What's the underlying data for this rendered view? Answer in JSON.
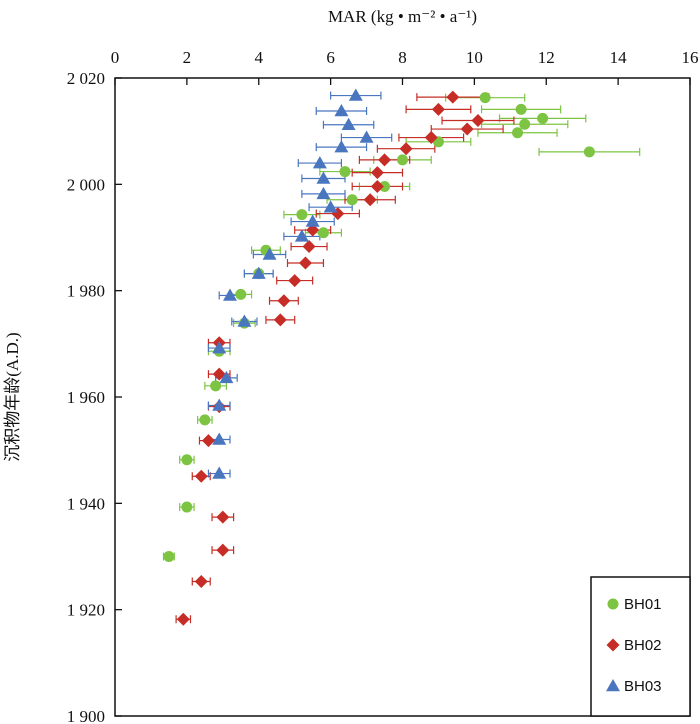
{
  "chart_data": {
    "type": "scatter",
    "title": "",
    "xlabel": "MAR (kg • m⁻² • a⁻¹)",
    "ylabel": "沉积物年龄(A.D.)",
    "xlim": [
      0,
      16
    ],
    "ylim": [
      1900,
      2020
    ],
    "xticks": [
      0,
      2,
      4,
      6,
      8,
      10,
      12,
      14,
      16
    ],
    "yticks": [
      1900,
      1920,
      1940,
      1960,
      1980,
      2000,
      2020
    ],
    "ytick_labels": [
      "1 900",
      "1 920",
      "1 940",
      "1 960",
      "1 980",
      "2 000",
      "2 020"
    ],
    "x_axis_position": "top",
    "y_axis_inverted": false,
    "grid": false,
    "legend_position": "bottom-right",
    "error_bars": "horizontal",
    "series": [
      {
        "name": "BH01",
        "marker": "circle",
        "color": "#7dc443",
        "points": [
          {
            "x": 10.3,
            "y": 2016.3,
            "xerr": 1.1
          },
          {
            "x": 11.3,
            "y": 2014.1,
            "xerr": 1.1
          },
          {
            "x": 11.9,
            "y": 2012.4,
            "xerr": 1.2
          },
          {
            "x": 11.4,
            "y": 2011.3,
            "xerr": 1.2
          },
          {
            "x": 11.2,
            "y": 2009.7,
            "xerr": 1.1
          },
          {
            "x": 9.0,
            "y": 2008.0,
            "xerr": 0.9
          },
          {
            "x": 13.2,
            "y": 2006.1,
            "xerr": 1.4
          },
          {
            "x": 8.0,
            "y": 2004.6,
            "xerr": 0.8
          },
          {
            "x": 6.4,
            "y": 2002.4,
            "xerr": 0.7
          },
          {
            "x": 7.5,
            "y": 1999.6,
            "xerr": 0.7
          },
          {
            "x": 6.6,
            "y": 1997.1,
            "xerr": 0.7
          },
          {
            "x": 5.2,
            "y": 1994.3,
            "xerr": 0.5
          },
          {
            "x": 5.8,
            "y": 1990.9,
            "xerr": 0.5
          },
          {
            "x": 4.2,
            "y": 1987.6,
            "xerr": 0.4
          },
          {
            "x": 4.0,
            "y": 1983.2,
            "xerr": 0.4
          },
          {
            "x": 3.5,
            "y": 1979.3,
            "xerr": 0.3
          },
          {
            "x": 3.6,
            "y": 1973.9,
            "xerr": 0.3
          },
          {
            "x": 2.9,
            "y": 1968.6,
            "xerr": 0.3
          },
          {
            "x": 2.8,
            "y": 1962.1,
            "xerr": 0.3
          },
          {
            "x": 2.5,
            "y": 1955.7,
            "xerr": 0.2
          },
          {
            "x": 2.0,
            "y": 1948.2,
            "xerr": 0.2
          },
          {
            "x": 2.0,
            "y": 1939.3,
            "xerr": 0.2
          },
          {
            "x": 1.5,
            "y": 1930.0,
            "xerr": 0.15
          }
        ]
      },
      {
        "name": "BH02",
        "marker": "diamond",
        "color": "#c62d26",
        "points": [
          {
            "x": 9.4,
            "y": 2016.4,
            "xerr": 1.0
          },
          {
            "x": 9.0,
            "y": 2014.1,
            "xerr": 0.9
          },
          {
            "x": 10.1,
            "y": 2012.0,
            "xerr": 1.0
          },
          {
            "x": 9.8,
            "y": 2010.4,
            "xerr": 1.0
          },
          {
            "x": 8.8,
            "y": 2008.8,
            "xerr": 0.9
          },
          {
            "x": 8.1,
            "y": 2006.7,
            "xerr": 0.8
          },
          {
            "x": 7.5,
            "y": 2004.6,
            "xerr": 0.7
          },
          {
            "x": 7.3,
            "y": 2002.2,
            "xerr": 0.7
          },
          {
            "x": 7.3,
            "y": 1999.6,
            "xerr": 0.7
          },
          {
            "x": 7.1,
            "y": 1997.1,
            "xerr": 0.7
          },
          {
            "x": 6.2,
            "y": 1994.5,
            "xerr": 0.6
          },
          {
            "x": 5.5,
            "y": 1991.4,
            "xerr": 0.5
          },
          {
            "x": 5.4,
            "y": 1988.3,
            "xerr": 0.5
          },
          {
            "x": 5.3,
            "y": 1985.2,
            "xerr": 0.5
          },
          {
            "x": 5.0,
            "y": 1981.9,
            "xerr": 0.5
          },
          {
            "x": 4.7,
            "y": 1978.1,
            "xerr": 0.4
          },
          {
            "x": 4.6,
            "y": 1974.5,
            "xerr": 0.4
          },
          {
            "x": 2.9,
            "y": 1970.2,
            "xerr": 0.3
          },
          {
            "x": 2.9,
            "y": 1964.3,
            "xerr": 0.3
          },
          {
            "x": 2.9,
            "y": 1958.2,
            "xerr": 0.3
          },
          {
            "x": 2.6,
            "y": 1951.8,
            "xerr": 0.25
          },
          {
            "x": 2.4,
            "y": 1945.1,
            "xerr": 0.25
          },
          {
            "x": 3.0,
            "y": 1937.4,
            "xerr": 0.3
          },
          {
            "x": 3.0,
            "y": 1931.2,
            "xerr": 0.3
          },
          {
            "x": 2.4,
            "y": 1925.3,
            "xerr": 0.25
          },
          {
            "x": 1.9,
            "y": 1918.2,
            "xerr": 0.2
          }
        ]
      },
      {
        "name": "BH03",
        "marker": "triangle",
        "color": "#4a76c0",
        "points": [
          {
            "x": 6.7,
            "y": 2016.7,
            "xerr": 0.7
          },
          {
            "x": 6.3,
            "y": 2013.8,
            "xerr": 0.7
          },
          {
            "x": 6.5,
            "y": 2011.2,
            "xerr": 0.7
          },
          {
            "x": 7.0,
            "y": 2008.8,
            "xerr": 0.7
          },
          {
            "x": 6.3,
            "y": 2007.0,
            "xerr": 0.7
          },
          {
            "x": 5.7,
            "y": 2004.0,
            "xerr": 0.6
          },
          {
            "x": 5.8,
            "y": 2001.1,
            "xerr": 0.6
          },
          {
            "x": 5.8,
            "y": 1998.2,
            "xerr": 0.6
          },
          {
            "x": 6.0,
            "y": 1995.7,
            "xerr": 0.6
          },
          {
            "x": 5.5,
            "y": 1993.0,
            "xerr": 0.6
          },
          {
            "x": 5.2,
            "y": 1990.2,
            "xerr": 0.5
          },
          {
            "x": 4.3,
            "y": 1986.8,
            "xerr": 0.45
          },
          {
            "x": 4.0,
            "y": 1983.2,
            "xerr": 0.4
          },
          {
            "x": 3.2,
            "y": 1979.1,
            "xerr": 0.3
          },
          {
            "x": 3.6,
            "y": 1974.2,
            "xerr": 0.35
          },
          {
            "x": 2.9,
            "y": 1969.2,
            "xerr": 0.3
          },
          {
            "x": 3.1,
            "y": 1963.6,
            "xerr": 0.3
          },
          {
            "x": 2.9,
            "y": 1958.4,
            "xerr": 0.3
          },
          {
            "x": 2.9,
            "y": 1952.0,
            "xerr": 0.3
          },
          {
            "x": 2.9,
            "y": 1945.6,
            "xerr": 0.3
          }
        ]
      }
    ]
  }
}
